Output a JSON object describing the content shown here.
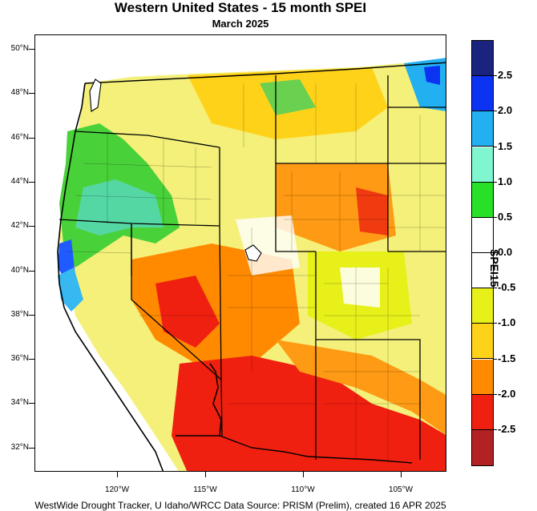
{
  "title": "Western United States - 15 month SPEI",
  "subtitle": "March 2025",
  "credit": "WestWide Drought Tracker, U Idaho/WRCC Data Source: PRISM (Prelim), created 16 APR 2025",
  "legend": {
    "title": "SPEI15",
    "labels": [
      "2.5",
      "2.0",
      "1.5",
      "1.0",
      "0.5",
      "0.0",
      "-0.5",
      "-1.0",
      "-1.5",
      "-2.0",
      "-2.5"
    ],
    "colors": [
      "#1a237e",
      "#0d33f2",
      "#22b0f0",
      "#7ff5d0",
      "#27e027",
      "#ffffff",
      "#ffffff",
      "#e8f01a",
      "#ffd21a",
      "#ff8a00",
      "#f02010",
      "#b22222"
    ]
  },
  "axes": {
    "lat_labels": [
      "50°N",
      "48°N",
      "46°N",
      "44°N",
      "42°N",
      "40°N",
      "38°N",
      "36°N",
      "34°N",
      "32°N"
    ],
    "lon_labels": [
      "120°W",
      "115°W",
      "110°W",
      "105°W"
    ]
  }
}
